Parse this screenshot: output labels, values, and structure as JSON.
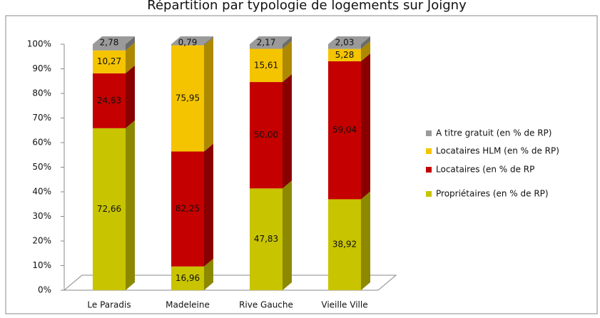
{
  "chart_data": {
    "type": "bar",
    "stacked": "percent",
    "title": "Répartition par typologie de logements sur Joigny",
    "categories": [
      "Le Paradis",
      "Madeleine",
      "Rive Gauche",
      "Vieille Ville"
    ],
    "series": [
      {
        "name": "Propriétaires (en % de RP)",
        "color": "#c8c400",
        "values": [
          72.66,
          16.96,
          47.83,
          38.92
        ],
        "value_labels": [
          "72,66",
          "16,96",
          "47,83",
          "38,92"
        ]
      },
      {
        "name": "Locataires (en % de RP",
        "color": "#c40000",
        "values": [
          24.63,
          82.25,
          50.0,
          59.04
        ],
        "value_labels": [
          "24,63",
          "82,25",
          "50,00",
          "59,04"
        ]
      },
      {
        "name": "Locataires HLM (en % de RP)",
        "color": "#f5c400",
        "values": [
          10.27,
          75.95,
          15.61,
          5.28
        ],
        "value_labels": [
          "10,27",
          "75,95",
          "15,61",
          "5,28"
        ]
      },
      {
        "name": "A titre gratuit (en % de RP)",
        "color": "#9a9a9a",
        "values": [
          2.78,
          0.79,
          2.17,
          2.03
        ],
        "value_labels": [
          "2,78",
          "0,79",
          "2,17",
          "2,03"
        ]
      }
    ],
    "ylim": [
      0,
      100
    ],
    "yticks": [
      {
        "value": 0,
        "label": "0%"
      },
      {
        "value": 10,
        "label": "10%"
      },
      {
        "value": 20,
        "label": "20%"
      },
      {
        "value": 30,
        "label": "30%"
      },
      {
        "value": 40,
        "label": "40%"
      },
      {
        "value": 50,
        "label": "50%"
      },
      {
        "value": 60,
        "label": "60%"
      },
      {
        "value": 70,
        "label": "70%"
      },
      {
        "value": 80,
        "label": "80%"
      },
      {
        "value": 90,
        "label": "90%"
      },
      {
        "value": 100,
        "label": "100%"
      }
    ],
    "legend": "right"
  }
}
